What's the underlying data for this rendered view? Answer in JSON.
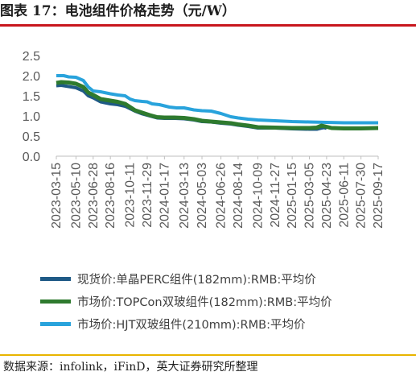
{
  "figure": {
    "title": "图表 17：电池组件价格走势（元/W）",
    "source": "数据来源：infolink，iFinD，英大证券研究所整理"
  },
  "chart_data": {
    "type": "line",
    "ylim": [
      0,
      2.5
    ],
    "yticks": [
      "0.0",
      "0.5",
      "1.0",
      "1.5",
      "2.0",
      "2.5"
    ],
    "xlim": [
      "2023-03-15",
      "2025-09-17"
    ],
    "xticks": [
      "2023-03-15",
      "2023-05-10",
      "2023-06-28",
      "2023-08-16",
      "2023-10-11",
      "2023-11-29",
      "2024-01-17",
      "2024-03-13",
      "2024-05-03",
      "2024-06-26",
      "2024-08-14",
      "2024-10-09",
      "2024-11-27",
      "2025-01-15",
      "2025-03-05",
      "2025-04-23",
      "2025-06-11",
      "2025-07-30",
      "2025-09-17"
    ],
    "grid": false,
    "legend_position": "bottom",
    "series": [
      {
        "name": "现货价:单晶PERC组件(182mm):RMB:平均价",
        "color": "#1f5a86",
        "width": 4,
        "points": [
          [
            "2023-03-15",
            1.75
          ],
          [
            "2023-03-29",
            1.76
          ],
          [
            "2023-04-19",
            1.73
          ],
          [
            "2023-05-10",
            1.7
          ],
          [
            "2023-05-31",
            1.62
          ],
          [
            "2023-06-14",
            1.5
          ],
          [
            "2023-06-28",
            1.45
          ],
          [
            "2023-07-19",
            1.35
          ],
          [
            "2023-08-16",
            1.3
          ],
          [
            "2023-09-06",
            1.28
          ],
          [
            "2023-09-27",
            1.24
          ],
          [
            "2023-10-11",
            1.18
          ],
          [
            "2023-10-25",
            1.12
          ],
          [
            "2023-11-15",
            1.05
          ],
          [
            "2023-12-06",
            1.0
          ],
          [
            "2023-12-27",
            0.95
          ],
          [
            "2024-01-17",
            0.94
          ],
          [
            "2024-02-14",
            0.94
          ],
          [
            "2024-03-13",
            0.93
          ],
          [
            "2024-04-10",
            0.9
          ],
          [
            "2024-05-03",
            0.86
          ],
          [
            "2024-05-29",
            0.85
          ],
          [
            "2024-06-26",
            0.82
          ],
          [
            "2024-07-24",
            0.8
          ],
          [
            "2024-08-14",
            0.77
          ],
          [
            "2024-09-11",
            0.74
          ],
          [
            "2024-10-09",
            0.7
          ],
          [
            "2024-11-27",
            0.7
          ],
          [
            "2025-01-15",
            0.68
          ],
          [
            "2025-03-05",
            0.67
          ],
          [
            "2025-03-26",
            0.67
          ],
          [
            "2025-04-09",
            0.7
          ],
          [
            "2025-04-16",
            0.71
          ],
          [
            "2025-04-23",
            0.69
          ]
        ]
      },
      {
        "name": "市场价:TOPCon双玻组件(182mm):RMB:平均价",
        "color": "#2e7a2e",
        "width": 5,
        "points": [
          [
            "2023-03-15",
            1.82
          ],
          [
            "2023-03-29",
            1.84
          ],
          [
            "2023-04-19",
            1.83
          ],
          [
            "2023-05-10",
            1.8
          ],
          [
            "2023-05-31",
            1.72
          ],
          [
            "2023-06-14",
            1.58
          ],
          [
            "2023-06-28",
            1.52
          ],
          [
            "2023-07-19",
            1.42
          ],
          [
            "2023-08-16",
            1.38
          ],
          [
            "2023-09-06",
            1.35
          ],
          [
            "2023-09-27",
            1.3
          ],
          [
            "2023-10-11",
            1.22
          ],
          [
            "2023-10-25",
            1.14
          ],
          [
            "2023-11-15",
            1.08
          ],
          [
            "2023-12-06",
            1.02
          ],
          [
            "2023-12-27",
            0.97
          ],
          [
            "2024-01-17",
            0.96
          ],
          [
            "2024-02-14",
            0.96
          ],
          [
            "2024-03-13",
            0.95
          ],
          [
            "2024-04-10",
            0.92
          ],
          [
            "2024-05-03",
            0.88
          ],
          [
            "2024-05-29",
            0.86
          ],
          [
            "2024-06-26",
            0.84
          ],
          [
            "2024-07-24",
            0.82
          ],
          [
            "2024-08-14",
            0.79
          ],
          [
            "2024-09-11",
            0.76
          ],
          [
            "2024-10-09",
            0.72
          ],
          [
            "2024-11-27",
            0.71
          ],
          [
            "2025-01-15",
            0.7
          ],
          [
            "2025-03-05",
            0.7
          ],
          [
            "2025-03-26",
            0.71
          ],
          [
            "2025-04-09",
            0.76
          ],
          [
            "2025-04-23",
            0.73
          ],
          [
            "2025-05-07",
            0.7
          ],
          [
            "2025-06-11",
            0.69
          ],
          [
            "2025-07-30",
            0.69
          ],
          [
            "2025-09-17",
            0.7
          ]
        ]
      },
      {
        "name": "市场价:HJT双玻组件(210mm):RMB:平均价",
        "color": "#29a3dc",
        "width": 4,
        "points": [
          [
            "2023-03-15",
            2.0
          ],
          [
            "2023-04-05",
            2.0
          ],
          [
            "2023-04-19",
            1.97
          ],
          [
            "2023-05-10",
            1.96
          ],
          [
            "2023-05-31",
            1.88
          ],
          [
            "2023-06-14",
            1.72
          ],
          [
            "2023-06-28",
            1.62
          ],
          [
            "2023-07-19",
            1.6
          ],
          [
            "2023-08-16",
            1.55
          ],
          [
            "2023-09-06",
            1.52
          ],
          [
            "2023-09-27",
            1.5
          ],
          [
            "2023-10-11",
            1.42
          ],
          [
            "2023-10-25",
            1.38
          ],
          [
            "2023-11-15",
            1.36
          ],
          [
            "2023-11-29",
            1.35
          ],
          [
            "2023-12-13",
            1.3
          ],
          [
            "2024-01-03",
            1.28
          ],
          [
            "2024-01-31",
            1.22
          ],
          [
            "2024-02-21",
            1.2
          ],
          [
            "2024-03-13",
            1.2
          ],
          [
            "2024-04-10",
            1.15
          ],
          [
            "2024-05-03",
            1.13
          ],
          [
            "2024-05-29",
            1.12
          ],
          [
            "2024-06-26",
            1.06
          ],
          [
            "2024-07-24",
            0.98
          ],
          [
            "2024-08-14",
            0.95
          ],
          [
            "2024-09-11",
            0.92
          ],
          [
            "2024-10-09",
            0.9
          ],
          [
            "2024-11-27",
            0.88
          ],
          [
            "2025-01-15",
            0.86
          ],
          [
            "2025-03-05",
            0.85
          ],
          [
            "2025-04-23",
            0.84
          ],
          [
            "2025-06-11",
            0.83
          ],
          [
            "2025-07-30",
            0.83
          ],
          [
            "2025-09-17",
            0.83
          ]
        ]
      }
    ]
  }
}
